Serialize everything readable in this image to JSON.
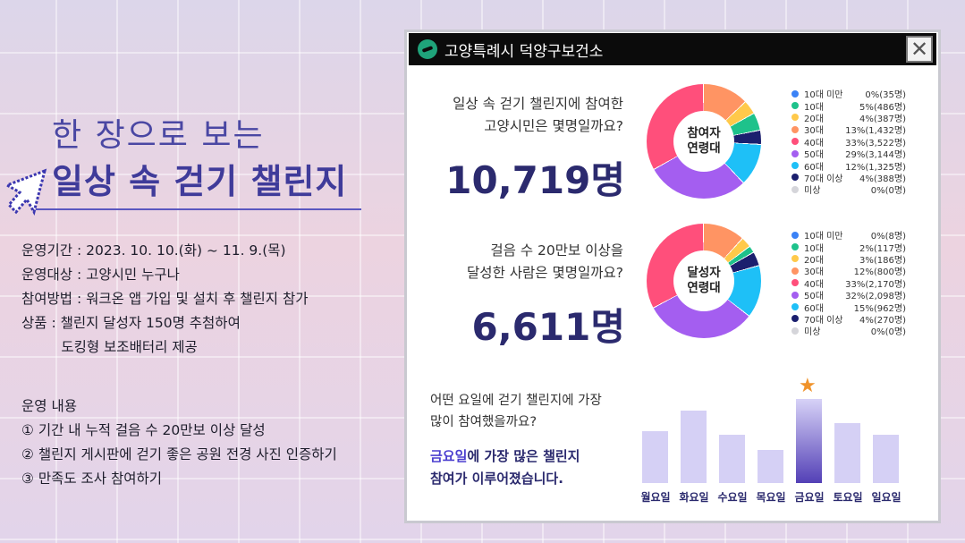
{
  "left": {
    "subtitle": "한 장으로 보는",
    "title": "일상 속 걷기 챌린지",
    "details": [
      "운영기간 : 2023. 10. 10.(화) ~ 11. 9.(목)",
      "운영대상 : 고양시민 누구나",
      "참여방법 : 워크온 앱 가입 및 설치 후 챌린지 참가",
      "상품 : 챌린지 달성자 150명 추첨하여",
      "         도킹형 보조배터리 제공"
    ],
    "ops_title": "운영 내용",
    "ops": [
      "① 기간 내 누적 걸음 수 20만보 이상 달성",
      "② 챌린지 게시판에 걷기 좋은 공원 전경 사진 인증하기",
      "③ 만족도 조사 참여하기"
    ]
  },
  "panel": {
    "title": "고양특례시 덕양구보건소",
    "close_icon": "close-icon",
    "participants": {
      "question": [
        "일상 속 걷기 챌린지에 참여한",
        "고양시민은 몇명일까요?"
      ],
      "total": "10,719명",
      "center": [
        "참여자",
        "연령대"
      ],
      "legend": [
        {
          "label": "10대 미만",
          "value": "0%(35명)",
          "pct": 0,
          "color": "#3b82f6"
        },
        {
          "label": "10대",
          "value": "5%(486명)",
          "pct": 5,
          "color": "#1ec28b"
        },
        {
          "label": "20대",
          "value": "4%(387명)",
          "pct": 4,
          "color": "#ffc94a"
        },
        {
          "label": "30대",
          "value": "13%(1,432명)",
          "pct": 13,
          "color": "#ff9463"
        },
        {
          "label": "40대",
          "value": "33%(3,522명)",
          "pct": 33,
          "color": "#ff4f7b"
        },
        {
          "label": "50대",
          "value": "29%(3,144명)",
          "pct": 29,
          "color": "#a45ef0"
        },
        {
          "label": "60대",
          "value": "12%(1,325명)",
          "pct": 12,
          "color": "#1ec0f7"
        },
        {
          "label": "70대 이상",
          "value": "4%(388명)",
          "pct": 4,
          "color": "#1b1f6e"
        },
        {
          "label": "미상",
          "value": "0%(0명)",
          "pct": 0,
          "color": "#d5d5da"
        }
      ]
    },
    "achievers": {
      "question": [
        "걸음 수 20만보 이상을",
        "달성한 사람은 몇명일까요?"
      ],
      "total": "6,611명",
      "center": [
        "달성자",
        "연령대"
      ],
      "legend": [
        {
          "label": "10대 미만",
          "value": "0%(8명)",
          "pct": 0,
          "color": "#3b82f6"
        },
        {
          "label": "10대",
          "value": "2%(117명)",
          "pct": 2,
          "color": "#1ec28b"
        },
        {
          "label": "20대",
          "value": "3%(186명)",
          "pct": 3,
          "color": "#ffc94a"
        },
        {
          "label": "30대",
          "value": "12%(800명)",
          "pct": 12,
          "color": "#ff9463"
        },
        {
          "label": "40대",
          "value": "33%(2,170명)",
          "pct": 33,
          "color": "#ff4f7b"
        },
        {
          "label": "50대",
          "value": "32%(2,098명)",
          "pct": 32,
          "color": "#a45ef0"
        },
        {
          "label": "60대",
          "value": "15%(962명)",
          "pct": 15,
          "color": "#1ec0f7"
        },
        {
          "label": "70대 이상",
          "value": "4%(270명)",
          "pct": 4,
          "color": "#1b1f6e"
        },
        {
          "label": "미상",
          "value": "0%(0명)",
          "pct": 0,
          "color": "#d5d5da"
        }
      ]
    },
    "weekday": {
      "question": [
        "어떤 요일에 걷기 챌린지에 가장",
        "많이 참여했을까요?"
      ],
      "answer_hl": "금요일",
      "answer_rest": "에 가장 많은 챌린지",
      "answer_line2": "참여가 이루어졌습니다.",
      "chart_data": {
        "type": "bar",
        "categories": [
          "월요일",
          "화요일",
          "수요일",
          "목요일",
          "금요일",
          "토요일",
          "일요일"
        ],
        "values": [
          58,
          81,
          54,
          37,
          94,
          67,
          54
        ],
        "highlight": "금요일",
        "highlight_icon": "star-icon"
      }
    }
  }
}
